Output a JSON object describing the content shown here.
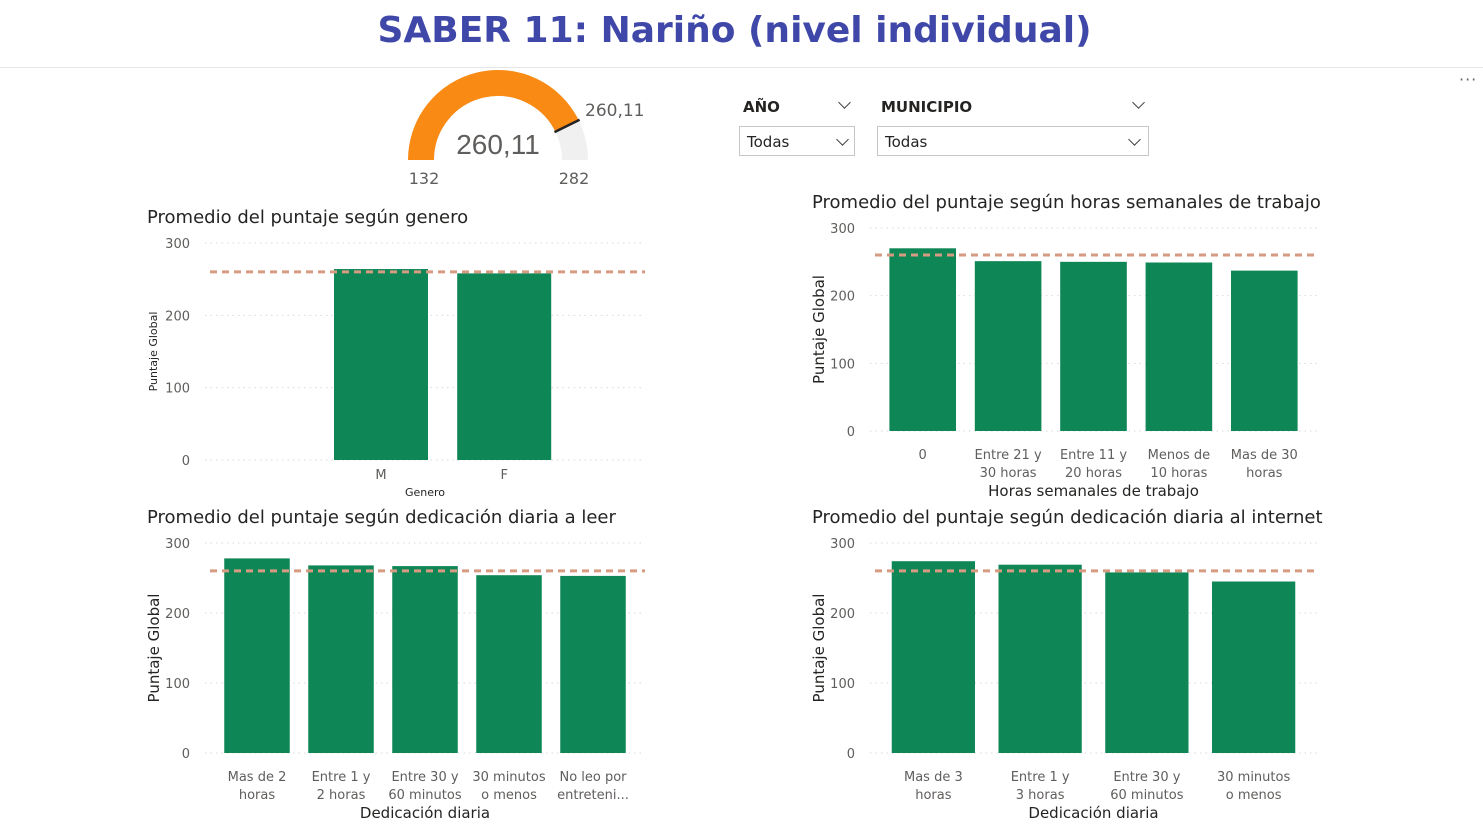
{
  "page": {
    "title": "SABER 11: Nariño (nivel individual)"
  },
  "gauge": {
    "value": 260.11,
    "value_label": "260,11",
    "min_label": "132",
    "max_label": "282",
    "min": 132,
    "max": 282,
    "fill_color": "#f98a14",
    "track_color": "#f0f0f0"
  },
  "filters": {
    "year": {
      "label": "AÑO",
      "selected": "Todas"
    },
    "municipio": {
      "label": "MUNICIPIO",
      "selected": "Todas"
    }
  },
  "colors": {
    "bar": "#0f8656",
    "reference": "#d79b82"
  },
  "chart_data": [
    {
      "type": "bar",
      "title": "Promedio del puntaje según genero",
      "categories": [
        "M",
        "F"
      ],
      "values": [
        264,
        258
      ],
      "xlabel": "Genero",
      "ylabel": "Puntaje Global",
      "ylim": [
        0,
        300
      ],
      "yticks": [
        "0",
        "100",
        "200",
        "300"
      ],
      "reference_line": 260.11,
      "grid": true
    },
    {
      "type": "bar",
      "title": "Promedio del puntaje según horas semanales de trabajo",
      "categories": [
        "0",
        "Entre 21 y 30 horas",
        "Entre 11 y 20 horas",
        "Menos de 10 horas",
        "Mas de 30 horas"
      ],
      "values": [
        270,
        251,
        250,
        249,
        237
      ],
      "xlabel": "Horas semanales de trabajo",
      "ylabel": "Puntaje Global",
      "ylim": [
        0,
        300
      ],
      "yticks": [
        "0",
        "100",
        "200",
        "300"
      ],
      "reference_line": 260.11,
      "grid": true
    },
    {
      "type": "bar",
      "title": "Promedio del puntaje según dedicación diaria a leer",
      "categories": [
        "Mas de 2 horas",
        "Entre 1 y 2 horas",
        "Entre 30 y 60 minutos",
        "30 minutos o menos",
        "No leo por entreteni..."
      ],
      "values": [
        278,
        268,
        267,
        254,
        253
      ],
      "xlabel": "Dedicación diaria",
      "ylabel": "Puntaje Global",
      "ylim": [
        0,
        300
      ],
      "yticks": [
        "0",
        "100",
        "200",
        "300"
      ],
      "reference_line": 260.11,
      "grid": true
    },
    {
      "type": "bar",
      "title": "Promedio del puntaje según dedicación diaria al internet",
      "categories": [
        "Mas de 3 horas",
        "Entre 1 y 3 horas",
        "Entre 30 y 60 minutos",
        "30 minutos o menos"
      ],
      "values": [
        274,
        269,
        258,
        245
      ],
      "xlabel": "Dedicación diaria",
      "ylabel": "Puntaje Global",
      "ylim": [
        0,
        300
      ],
      "yticks": [
        "0",
        "100",
        "200",
        "300"
      ],
      "reference_line": 260.11,
      "grid": true
    }
  ]
}
